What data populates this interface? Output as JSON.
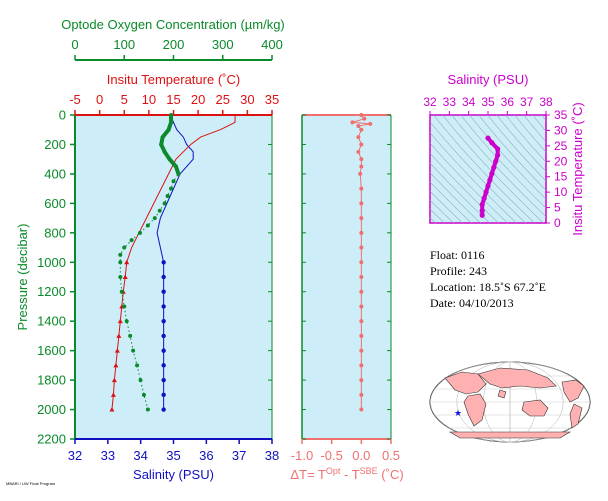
{
  "colors": {
    "oxygen": "#0a8a2a",
    "temperature": "#dd1111",
    "salinity": "#1010c0",
    "salinity_inset": "#cc00cc",
    "delta_t": "#f07070",
    "panel_bg": "#cdeef8",
    "land": "#ffb0b0",
    "float_marker": "#1010dd"
  },
  "info": {
    "float": "Float:  0116",
    "profile": "Profile:  243",
    "location": "Location:  18.5˚S  67.2˚E",
    "date": "Date:  04/10/2013"
  },
  "credit": "MBARI / UW Float Program",
  "chart_data": [
    {
      "type": "line",
      "panel": "main-profile",
      "ylabel": "Pressure (decibar)",
      "ylim": [
        2200,
        0
      ],
      "yticks": [
        "0",
        "200",
        "400",
        "600",
        "800",
        "1000",
        "1200",
        "1400",
        "1600",
        "1800",
        "2000",
        "2200"
      ],
      "axes": {
        "oxygen": {
          "label": "Optode Oxygen Concentration (µm/kg)",
          "range": [
            0,
            400
          ],
          "ticks": [
            "0",
            "100",
            "200",
            "300",
            "400"
          ]
        },
        "temperature": {
          "label": "Insitu Temperature (˚C)",
          "range": [
            -5,
            35
          ],
          "ticks": [
            "-5",
            "0",
            "5",
            "10",
            "15",
            "20",
            "25",
            "30",
            "35"
          ]
        },
        "salinity": {
          "label": "Salinity (PSU)",
          "range": [
            32,
            38
          ],
          "ticks": [
            "32",
            "33",
            "34",
            "35",
            "36",
            "37",
            "38"
          ]
        }
      },
      "series": [
        {
          "axis": "salinity",
          "style": "line-dots-deep",
          "points": [
            [
              34.9,
              0
            ],
            [
              35.0,
              50
            ],
            [
              35.1,
              100
            ],
            [
              35.3,
              150
            ],
            [
              35.4,
              200
            ],
            [
              35.6,
              250
            ],
            [
              35.6,
              300
            ],
            [
              35.4,
              350
            ],
            [
              35.2,
              400
            ],
            [
              35.1,
              450
            ],
            [
              35.0,
              500
            ],
            [
              34.9,
              550
            ],
            [
              34.8,
              600
            ],
            [
              34.7,
              650
            ],
            [
              34.6,
              700
            ],
            [
              34.5,
              800
            ],
            [
              34.6,
              900
            ],
            [
              34.7,
              1000
            ],
            [
              34.7,
              1100
            ],
            [
              34.7,
              1200
            ],
            [
              34.7,
              1300
            ],
            [
              34.7,
              1400
            ],
            [
              34.7,
              1500
            ],
            [
              34.7,
              1600
            ],
            [
              34.7,
              1700
            ],
            [
              34.7,
              1800
            ],
            [
              34.7,
              1900
            ],
            [
              34.7,
              2000
            ]
          ]
        },
        {
          "axis": "temperature",
          "style": "line-dots-deep",
          "points": [
            [
              27.5,
              0
            ],
            [
              27.5,
              50
            ],
            [
              24.5,
              100
            ],
            [
              20.5,
              150
            ],
            [
              18.5,
              200
            ],
            [
              17.0,
              250
            ],
            [
              15.5,
              300
            ],
            [
              14.0,
              400
            ],
            [
              12.5,
              500
            ],
            [
              11.0,
              600
            ],
            [
              9.5,
              700
            ],
            [
              8.0,
              800
            ],
            [
              6.5,
              900
            ],
            [
              5.5,
              1000
            ],
            [
              5.2,
              1100
            ],
            [
              4.8,
              1200
            ],
            [
              4.5,
              1300
            ],
            [
              4.2,
              1400
            ],
            [
              3.9,
              1500
            ],
            [
              3.6,
              1600
            ],
            [
              3.3,
              1700
            ],
            [
              3.0,
              1800
            ],
            [
              2.8,
              1900
            ],
            [
              2.5,
              2000
            ]
          ]
        },
        {
          "axis": "oxygen",
          "style": "thick-dots",
          "points": [
            [
              195,
              0
            ],
            [
              195,
              50
            ],
            [
              190,
              100
            ],
            [
              178,
              150
            ],
            [
              175,
              200
            ],
            [
              182,
              250
            ],
            [
              192,
              300
            ],
            [
              205,
              350
            ],
            [
              210,
              400
            ],
            [
              200,
              450
            ],
            [
              195,
              500
            ],
            [
              188,
              550
            ],
            [
              182,
              600
            ],
            [
              172,
              650
            ],
            [
              162,
              700
            ],
            [
              148,
              750
            ],
            [
              132,
              800
            ],
            [
              115,
              850
            ],
            [
              100,
              900
            ],
            [
              92,
              950
            ],
            [
              92,
              1000
            ],
            [
              92,
              1100
            ],
            [
              95,
              1200
            ],
            [
              100,
              1300
            ],
            [
              105,
              1400
            ],
            [
              112,
              1500
            ],
            [
              118,
              1600
            ],
            [
              126,
              1700
            ],
            [
              133,
              1800
            ],
            [
              140,
              1900
            ],
            [
              148,
              2000
            ]
          ]
        }
      ]
    },
    {
      "type": "scatter",
      "panel": "delta-t",
      "xlabel": "ΔT= T<sup>Opt</sup> - T<sup>SBE</sup> (˚C)",
      "xlim": [
        -1.0,
        0.5
      ],
      "xticks": [
        "-1.0",
        "-0.5",
        "0.0",
        "0.5"
      ],
      "ylim": [
        2200,
        0
      ],
      "points": [
        [
          0.0,
          0
        ],
        [
          0.05,
          25
        ],
        [
          -0.15,
          50
        ],
        [
          0.15,
          60
        ],
        [
          -0.05,
          75
        ],
        [
          0.0,
          100
        ],
        [
          -0.05,
          150
        ],
        [
          0.0,
          200
        ],
        [
          -0.05,
          250
        ],
        [
          0.0,
          300
        ],
        [
          0.0,
          350
        ],
        [
          -0.02,
          400
        ],
        [
          0.0,
          500
        ],
        [
          0.0,
          600
        ],
        [
          0.0,
          700
        ],
        [
          0.0,
          800
        ],
        [
          0.0,
          900
        ],
        [
          0.0,
          1000
        ],
        [
          0.0,
          1100
        ],
        [
          0.0,
          1200
        ],
        [
          0.0,
          1300
        ],
        [
          0.0,
          1400
        ],
        [
          0.0,
          1500
        ],
        [
          0.0,
          1600
        ],
        [
          0.0,
          1700
        ],
        [
          0.0,
          1800
        ],
        [
          0.0,
          1900
        ],
        [
          0.0,
          2000
        ]
      ]
    },
    {
      "type": "scatter",
      "panel": "ts-diagram",
      "xlabel": "Salinity (PSU)",
      "xlim": [
        32,
        38
      ],
      "xticks": [
        "32",
        "33",
        "34",
        "35",
        "36",
        "37",
        "38"
      ],
      "ylabel": "Insitu Temperature (˚C)",
      "ylim": [
        0,
        35
      ],
      "yticks": [
        "0",
        "5",
        "10",
        "15",
        "20",
        "25",
        "30",
        "35"
      ],
      "points": [
        [
          34.7,
          2.5
        ],
        [
          34.7,
          4
        ],
        [
          34.7,
          6
        ],
        [
          34.8,
          8
        ],
        [
          34.9,
          10
        ],
        [
          35.0,
          12
        ],
        [
          35.1,
          14
        ],
        [
          35.2,
          16
        ],
        [
          35.3,
          18
        ],
        [
          35.4,
          20
        ],
        [
          35.5,
          22
        ],
        [
          35.5,
          24
        ],
        [
          35.2,
          26
        ],
        [
          35.0,
          27.5
        ]
      ]
    }
  ]
}
